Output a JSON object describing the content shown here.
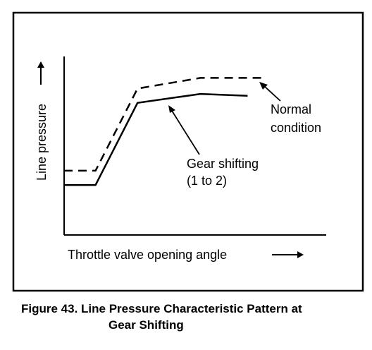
{
  "chart_data": {
    "type": "line",
    "xlabel": "Throttle valve opening angle",
    "ylabel": "Line pressure",
    "xlim": [
      0,
      100
    ],
    "ylim": [
      0,
      100
    ],
    "grid": false,
    "series": [
      {
        "name": "Normal condition",
        "style": "dashed",
        "x": [
          0,
          12,
          28,
          52,
          76
        ],
        "y": [
          36,
          36,
          82,
          88,
          88
        ]
      },
      {
        "name": "Gear shifting (1 to 2)",
        "style": "solid",
        "x": [
          0,
          12,
          28,
          52,
          70
        ],
        "y": [
          28,
          28,
          74,
          79,
          78
        ]
      }
    ],
    "annotations": [
      {
        "lines": [
          "Normal",
          "condition"
        ],
        "points_to": "Normal condition"
      },
      {
        "lines": [
          "Gear shifting",
          "(1 to 2)"
        ],
        "points_to": "Gear shifting (1 to 2)"
      }
    ]
  },
  "caption": {
    "line1": "Figure 43. Line Pressure Characteristic Pattern at",
    "line2": "Gear Shifting"
  }
}
